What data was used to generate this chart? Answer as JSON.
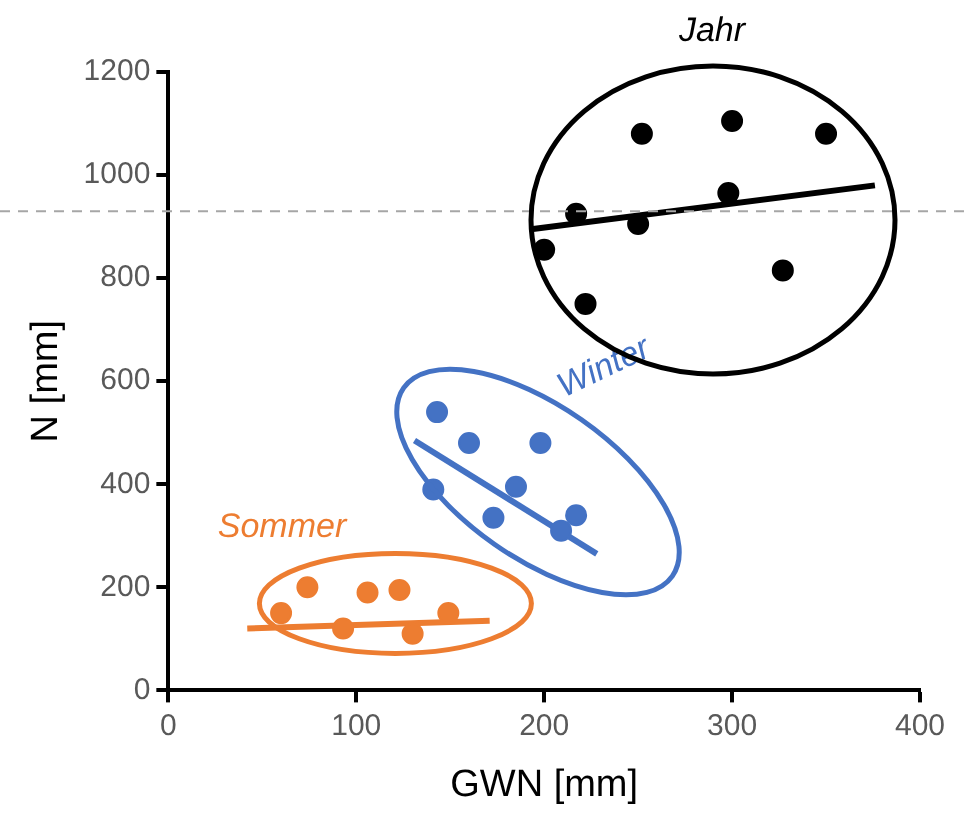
{
  "chart_data": {
    "type": "scatter",
    "xlabel": "GWN [mm]",
    "ylabel": "N [mm]",
    "xlim": [
      0,
      400
    ],
    "xticks": [
      0,
      100,
      200,
      300,
      400
    ],
    "ylim": [
      0,
      1200
    ],
    "yticks": [
      0,
      200,
      400,
      600,
      800,
      1000,
      1200
    ],
    "grid": false,
    "legend": false,
    "series": [
      {
        "name": "Jahr",
        "marker": "circle",
        "color": "#000000",
        "x": [
          252,
          300,
          350,
          217,
          250,
          298,
          200,
          222,
          327
        ],
        "values": [
          1080,
          1105,
          1080,
          925,
          905,
          965,
          855,
          750,
          815
        ]
      },
      {
        "type": "line",
        "marker": "none",
        "color": "#000000",
        "x": [
          193,
          376
        ],
        "values": [
          895,
          980
        ]
      },
      {
        "name": "Winter",
        "marker": "circle",
        "color": "#4472c4",
        "x": [
          143,
          160,
          198,
          141,
          185,
          173,
          217,
          209
        ],
        "values": [
          540,
          480,
          480,
          390,
          395,
          335,
          340,
          310
        ]
      },
      {
        "type": "line",
        "marker": "none",
        "color": "#4472c4",
        "x": [
          131,
          228
        ],
        "values": [
          485,
          265
        ]
      },
      {
        "name": "Sommer",
        "marker": "circle",
        "color": "#ed7d31",
        "x": [
          74,
          106,
          123,
          60,
          93,
          130,
          149
        ],
        "values": [
          200,
          190,
          195,
          150,
          120,
          110,
          150
        ]
      },
      {
        "type": "line",
        "marker": "none",
        "color": "#ed7d31",
        "x": [
          42,
          171
        ],
        "values": [
          120,
          135
        ]
      }
    ],
    "ref_lines": [
      {
        "axis": "y",
        "value": 930,
        "color": "#a6a6a6",
        "line_style": "dashed"
      }
    ]
  }
}
